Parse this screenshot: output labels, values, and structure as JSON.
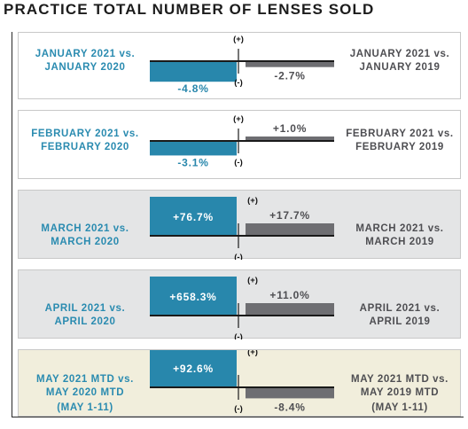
{
  "title": "PRACTICE TOTAL NUMBER OF LENSES SOLD",
  "colors": {
    "vs_2020": "#2887ac",
    "vs_2019": "#6e6e72",
    "axis": "#1a1a1a",
    "label_2020": "#2a8bb0",
    "label_2019": "#4e4e52"
  },
  "chart_data": {
    "type": "bar",
    "title": "PRACTICE TOTAL NUMBER OF LENSES SOLD",
    "markers": {
      "positive": "(+)",
      "negative": "(-)"
    },
    "panels": [
      {
        "left_label": [
          "JANUARY 2021 vs.",
          "JANUARY 2020"
        ],
        "right_label": [
          "JANUARY 2021 vs.",
          "JANUARY 2019"
        ],
        "vs_2020": -4.8,
        "vs_2020_text": "-4.8%",
        "vs_2019": -2.7,
        "vs_2019_text": "-2.7%",
        "background": "white"
      },
      {
        "left_label": [
          "FEBRUARY 2021 vs.",
          "FEBRUARY 2020"
        ],
        "right_label": [
          "FEBRUARY 2021 vs.",
          "FEBRUARY 2019"
        ],
        "vs_2020": -3.1,
        "vs_2020_text": "-3.1%",
        "vs_2019": 1.0,
        "vs_2019_text": "+1.0%",
        "background": "white"
      },
      {
        "left_label": [
          "MARCH 2021 vs.",
          "MARCH 2020"
        ],
        "right_label": [
          "MARCH 2021 vs.",
          "MARCH 2019"
        ],
        "vs_2020": 76.7,
        "vs_2020_text": "+76.7%",
        "vs_2019": 17.7,
        "vs_2019_text": "+17.7%",
        "background": "gray"
      },
      {
        "left_label": [
          "APRIL 2021 vs.",
          "APRIL 2020"
        ],
        "right_label": [
          "APRIL 2021 vs.",
          "APRIL 2019"
        ],
        "vs_2020": 658.3,
        "vs_2020_text": "+658.3%",
        "vs_2019": 11.0,
        "vs_2019_text": "+11.0%",
        "background": "gray"
      },
      {
        "left_label": [
          "MAY 2021 MTD vs.",
          "MAY 2020 MTD"
        ],
        "left_sub": "(MAY 1-11)",
        "right_label": [
          "MAY 2021 MTD vs.",
          "MAY 2019 MTD"
        ],
        "right_sub": "(MAY 1-11)",
        "vs_2020": 92.6,
        "vs_2020_text": "+92.6%",
        "vs_2019": -8.4,
        "vs_2019_text": "-8.4%",
        "background": "cream"
      }
    ]
  }
}
